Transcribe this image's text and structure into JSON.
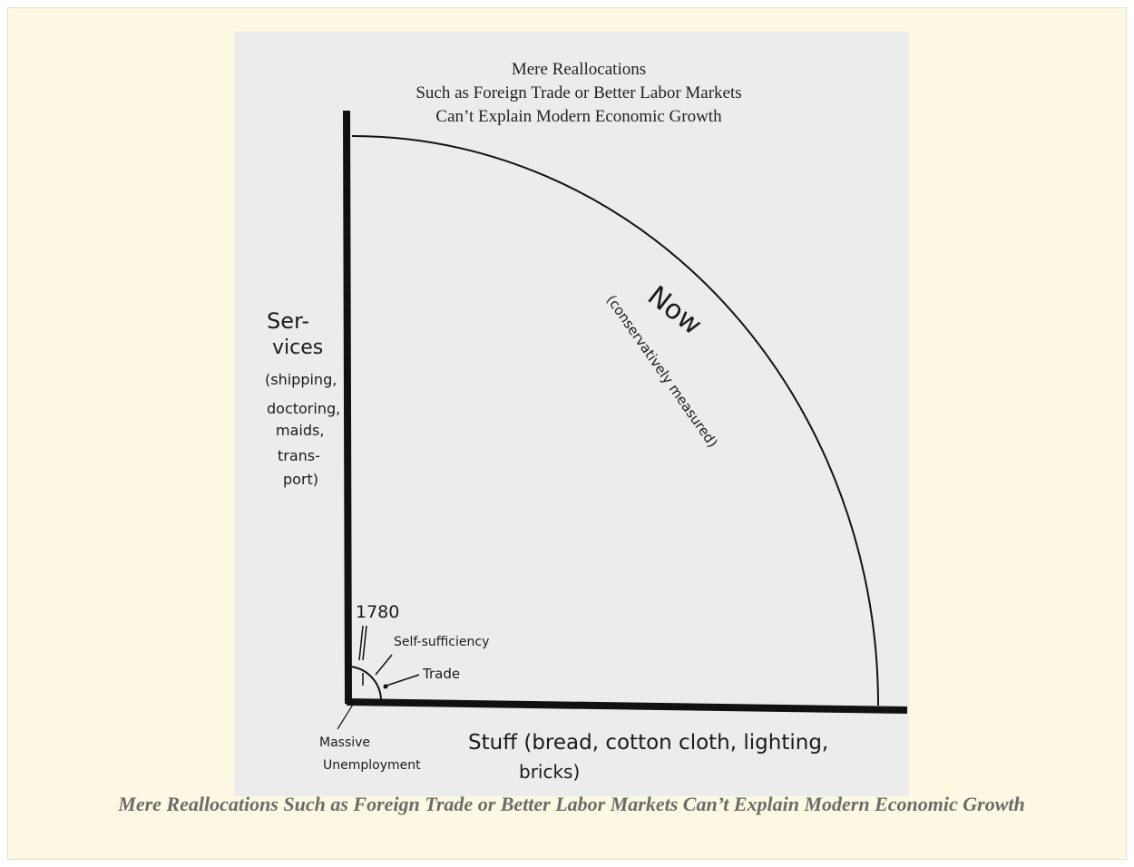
{
  "figure": {
    "title_lines": [
      "Mere Reallocations",
      "Such as Foreign Trade or Better Labor Markets",
      "Can’t Explain Modern Economic Growth"
    ],
    "now": "Now",
    "now_note": "(conservatively measured)",
    "y_axis_label": [
      "Ser-",
      "vices",
      "(shipping,",
      "doctoring,",
      "maids,",
      "trans-",
      "port)"
    ],
    "year": "1780",
    "self_sufficiency": "Self-sufficiency",
    "trade": "Trade",
    "unemployment": [
      "Massive",
      "Unemployment"
    ],
    "x_axis_label": [
      "Stuff (bread, cotton cloth, lighting,",
      "bricks)"
    ]
  },
  "caption": "Mere Reallocations Such as Foreign Trade or Better Labor Markets Can’t Explain Modern Economic Growth"
}
